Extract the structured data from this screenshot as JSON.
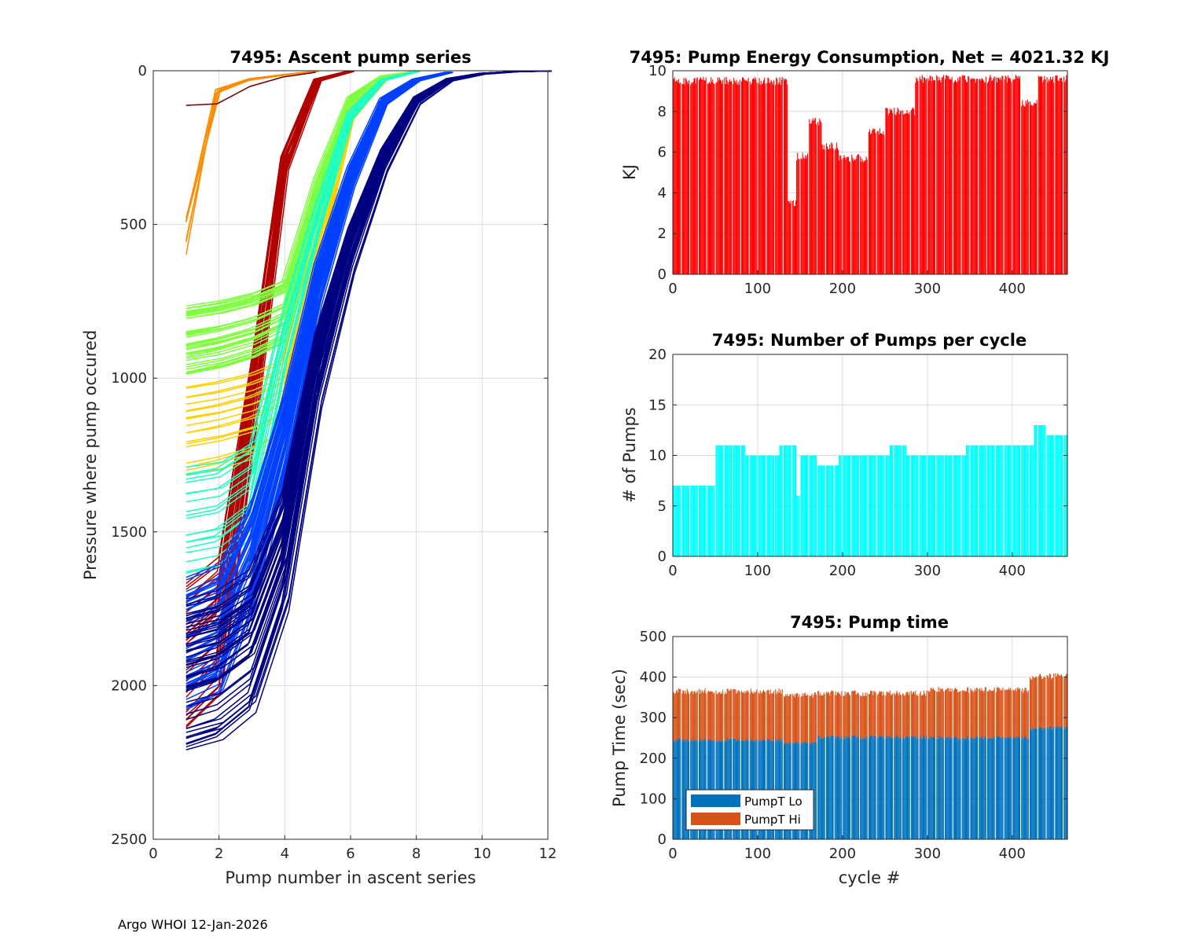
{
  "footer": "Argo WHOI 12-Jan-2026",
  "chart_data": [
    {
      "id": "ascent",
      "type": "line",
      "title": "7495: Ascent pump series",
      "xlabel": "Pump number in ascent series",
      "ylabel": "Pressure where pump occured",
      "xlim": [
        0,
        12
      ],
      "ylim": [
        0,
        2500
      ],
      "y_reversed": true,
      "xticks": [
        0,
        2,
        4,
        6,
        8,
        10,
        12
      ],
      "yticks": [
        0,
        500,
        1000,
        1500,
        2000,
        2500
      ],
      "grid": true,
      "colormap": "jet",
      "series_groups": [
        {
          "name": "early-orange",
          "color": "#ff8c00",
          "count": 8,
          "points": [
            [
              1,
              560
            ],
            [
              2,
              70
            ],
            [
              3,
              30
            ],
            [
              4,
              15
            ],
            [
              5,
              2
            ]
          ]
        },
        {
          "name": "early-darkred-short",
          "color": "#6b0000",
          "count": 1,
          "points": [
            [
              1,
              110
            ],
            [
              2,
              105
            ],
            [
              3,
              50
            ],
            [
              4,
              20
            ],
            [
              5,
              5
            ]
          ]
        },
        {
          "name": "darkred",
          "color": "#b00000",
          "count": 30,
          "points": [
            [
              1,
              1950
            ],
            [
              2,
              1850
            ],
            [
              3,
              1100
            ],
            [
              4,
              300
            ],
            [
              5,
              30
            ],
            [
              6,
              2
            ]
          ]
        },
        {
          "name": "yellow-green",
          "color": "#7fff40",
          "count": 40,
          "points": [
            [
              1,
              900
            ],
            [
              2,
              880
            ],
            [
              3,
              850
            ],
            [
              4,
              800
            ],
            [
              5,
              400
            ],
            [
              6,
              100
            ],
            [
              7,
              20
            ],
            [
              8,
              2
            ]
          ]
        },
        {
          "name": "yellow-orange",
          "color": "#ffd000",
          "count": 20,
          "points": [
            [
              1,
              1200
            ],
            [
              2,
              1180
            ],
            [
              3,
              1150
            ],
            [
              4,
              1100
            ],
            [
              5,
              600
            ],
            [
              6,
              150
            ],
            [
              7,
              30
            ],
            [
              8,
              2
            ]
          ]
        },
        {
          "name": "cyan-green",
          "color": "#20ffc0",
          "count": 20,
          "points": [
            [
              1,
              1500
            ],
            [
              2,
              1480
            ],
            [
              3,
              1400
            ],
            [
              4,
              900
            ],
            [
              5,
              500
            ],
            [
              6,
              150
            ],
            [
              7,
              30
            ],
            [
              8,
              3
            ]
          ]
        },
        {
          "name": "blue",
          "color": "#0040ff",
          "count": 50,
          "points": [
            [
              1,
              1900
            ],
            [
              2,
              1850
            ],
            [
              3,
              1600
            ],
            [
              4,
              1200
            ],
            [
              5,
              700
            ],
            [
              6,
              350
            ],
            [
              7,
              100
            ],
            [
              8,
              30
            ],
            [
              9,
              5
            ]
          ]
        },
        {
          "name": "darkblue",
          "color": "#000080",
          "count": 50,
          "points": [
            [
              1,
              2010
            ],
            [
              2,
              1980
            ],
            [
              3,
              1900
            ],
            [
              4,
              1600
            ],
            [
              5,
              1000
            ],
            [
              6,
              600
            ],
            [
              7,
              300
            ],
            [
              8,
              100
            ],
            [
              9,
              30
            ],
            [
              10,
              10
            ],
            [
              11,
              3
            ],
            [
              12,
              1
            ]
          ]
        }
      ]
    },
    {
      "id": "energy",
      "type": "bar",
      "title": "7495: Pump Energy Consumption,  Net = 4021.32 KJ",
      "xlabel": "",
      "ylabel": "KJ",
      "xlim": [
        0,
        465
      ],
      "ylim": [
        0,
        10
      ],
      "xticks": [
        0,
        100,
        200,
        300,
        400
      ],
      "yticks": [
        0,
        2,
        4,
        6,
        8,
        10
      ],
      "grid": true,
      "color": "#ff0000",
      "segments": [
        {
          "from": 1,
          "to": 135,
          "value": 9.5
        },
        {
          "from": 136,
          "to": 145,
          "value": 3.5
        },
        {
          "from": 146,
          "to": 160,
          "value": 5.8
        },
        {
          "from": 161,
          "to": 175,
          "value": 7.5
        },
        {
          "from": 176,
          "to": 195,
          "value": 6.3
        },
        {
          "from": 196,
          "to": 230,
          "value": 5.7
        },
        {
          "from": 231,
          "to": 250,
          "value": 7.0
        },
        {
          "from": 251,
          "to": 285,
          "value": 8.0
        },
        {
          "from": 286,
          "to": 410,
          "value": 9.6
        },
        {
          "from": 411,
          "to": 430,
          "value": 8.4
        },
        {
          "from": 431,
          "to": 465,
          "value": 9.6
        }
      ]
    },
    {
      "id": "npumps",
      "type": "bar",
      "title": "7495: Number of Pumps per cycle",
      "xlabel": "",
      "ylabel": "# of Pumps",
      "xlim": [
        0,
        465
      ],
      "ylim": [
        0,
        20
      ],
      "xticks": [
        0,
        100,
        200,
        300,
        400
      ],
      "yticks": [
        0,
        5,
        10,
        15,
        20
      ],
      "grid": true,
      "color": "#00ffff",
      "segments": [
        {
          "from": 1,
          "to": 50,
          "value": 7
        },
        {
          "from": 51,
          "to": 85,
          "value": 11
        },
        {
          "from": 86,
          "to": 125,
          "value": 10
        },
        {
          "from": 126,
          "to": 145,
          "value": 11
        },
        {
          "from": 146,
          "to": 150,
          "value": 6
        },
        {
          "from": 151,
          "to": 170,
          "value": 10
        },
        {
          "from": 171,
          "to": 195,
          "value": 9
        },
        {
          "from": 196,
          "to": 255,
          "value": 10
        },
        {
          "from": 256,
          "to": 275,
          "value": 11
        },
        {
          "from": 276,
          "to": 345,
          "value": 10
        },
        {
          "from": 346,
          "to": 425,
          "value": 11
        },
        {
          "from": 426,
          "to": 440,
          "value": 13
        },
        {
          "from": 441,
          "to": 465,
          "value": 12
        }
      ],
      "max_value": 16
    },
    {
      "id": "pumptime",
      "type": "bar",
      "stacked": true,
      "title": "7495: Pump time",
      "xlabel": "cycle #",
      "ylabel": "Pump Time (sec)",
      "xlim": [
        0,
        465
      ],
      "ylim": [
        0,
        500
      ],
      "xticks": [
        0,
        100,
        200,
        300,
        400
      ],
      "yticks": [
        0,
        100,
        200,
        300,
        400,
        500
      ],
      "grid": true,
      "legend": {
        "placement": "bottom-left",
        "entries": [
          "PumpT Lo",
          "PumpT Hi"
        ]
      },
      "series": [
        {
          "name": "PumpT Lo",
          "color": "#0072bd",
          "segments": [
            {
              "from": 1,
              "to": 130,
              "value": 245
            },
            {
              "from": 131,
              "to": 170,
              "value": 238
            },
            {
              "from": 171,
              "to": 300,
              "value": 252
            },
            {
              "from": 301,
              "to": 420,
              "value": 250
            },
            {
              "from": 421,
              "to": 465,
              "value": 275
            }
          ]
        },
        {
          "name": "PumpT Hi",
          "color": "#d95319",
          "segments": [
            {
              "from": 1,
              "to": 130,
              "value": 120
            },
            {
              "from": 131,
              "to": 170,
              "value": 118
            },
            {
              "from": 171,
              "to": 300,
              "value": 108
            },
            {
              "from": 301,
              "to": 420,
              "value": 118
            },
            {
              "from": 421,
              "to": 465,
              "value": 127
            }
          ]
        }
      ]
    }
  ]
}
